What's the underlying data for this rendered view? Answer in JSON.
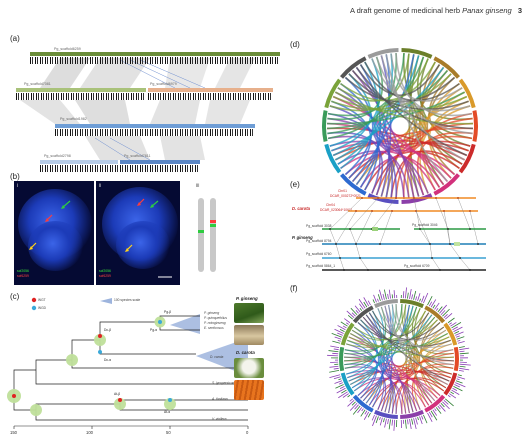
{
  "header": {
    "prefix": "A draft genome of medicinal herb",
    "species": "Panax ginseng",
    "page": "3"
  },
  "panels": {
    "a": {
      "label": "(a)",
      "tracks": [
        {
          "name": "Pg_scaffold6259",
          "color": "#6b8e3a"
        },
        {
          "name": "Pg_scaffold7081",
          "color": "#a9c27a"
        },
        {
          "name": "Pg_scaffold6979",
          "color": "#e7b08c"
        },
        {
          "name": "Pg_scaffold1982",
          "color": "#6f9ed6"
        },
        {
          "name": "Pg_scaffold2798",
          "color": "#b6cbe6"
        },
        {
          "name": "Pg_scaffold7811",
          "color": "#5b86c4"
        }
      ]
    },
    "b": {
      "label": "(b)",
      "sub": [
        "i",
        "ii",
        "iii"
      ],
      "probes_i": [
        "scf2056",
        "scf6259"
      ],
      "probes_ii": [
        "scf2056",
        "scf6259"
      ]
    },
    "c": {
      "label": "(c)",
      "legend": {
        "wgt": "WGT",
        "wgd": "WGD",
        "events": "100 species scale"
      },
      "events": [
        "Pg-β",
        "Pg-α",
        "Dc-β",
        "Dc-α",
        "At-β",
        "At-α"
      ],
      "taxa": [
        "P. ginseng",
        "P. quinquefolius",
        "P. notoginseng",
        "E. senticosus",
        "D. carota",
        "S. lycopersicum",
        "A. thaliana",
        "V. vinifera"
      ],
      "photo_titles": [
        "P. ginseng",
        "D. carota"
      ],
      "axis": [
        "150",
        "100",
        "50",
        "0"
      ]
    },
    "d": {
      "label": "(d)"
    },
    "e": {
      "label": "(e)",
      "carrot_label": "D. carota",
      "ginseng_label": "P. ginseng",
      "carrot_tracks": [
        "Chr01",
        "DCAR_000272*0021",
        "Chr04",
        "DCAR_023064*10611"
      ],
      "ginseng_tracks": [
        "Pg_scaffold 3038",
        "Pg_scaffold 8794",
        "Pg_scaffold 6760",
        "Pg_scaffold 5864_1",
        "Pg_scaffold 3046",
        "Pg_scaffold 6709"
      ]
    },
    "f": {
      "label": "(f)"
    }
  },
  "colors": {
    "circos": [
      "#6b7f2a",
      "#a87c2a",
      "#d99a2b",
      "#e34b27",
      "#cc2b2b",
      "#d2317c",
      "#8b3fa9",
      "#5a4fc0",
      "#2d6ad0",
      "#1aa0c6",
      "#3a9b5a",
      "#7aa33a",
      "#555555",
      "#9b9b9b"
    ]
  }
}
